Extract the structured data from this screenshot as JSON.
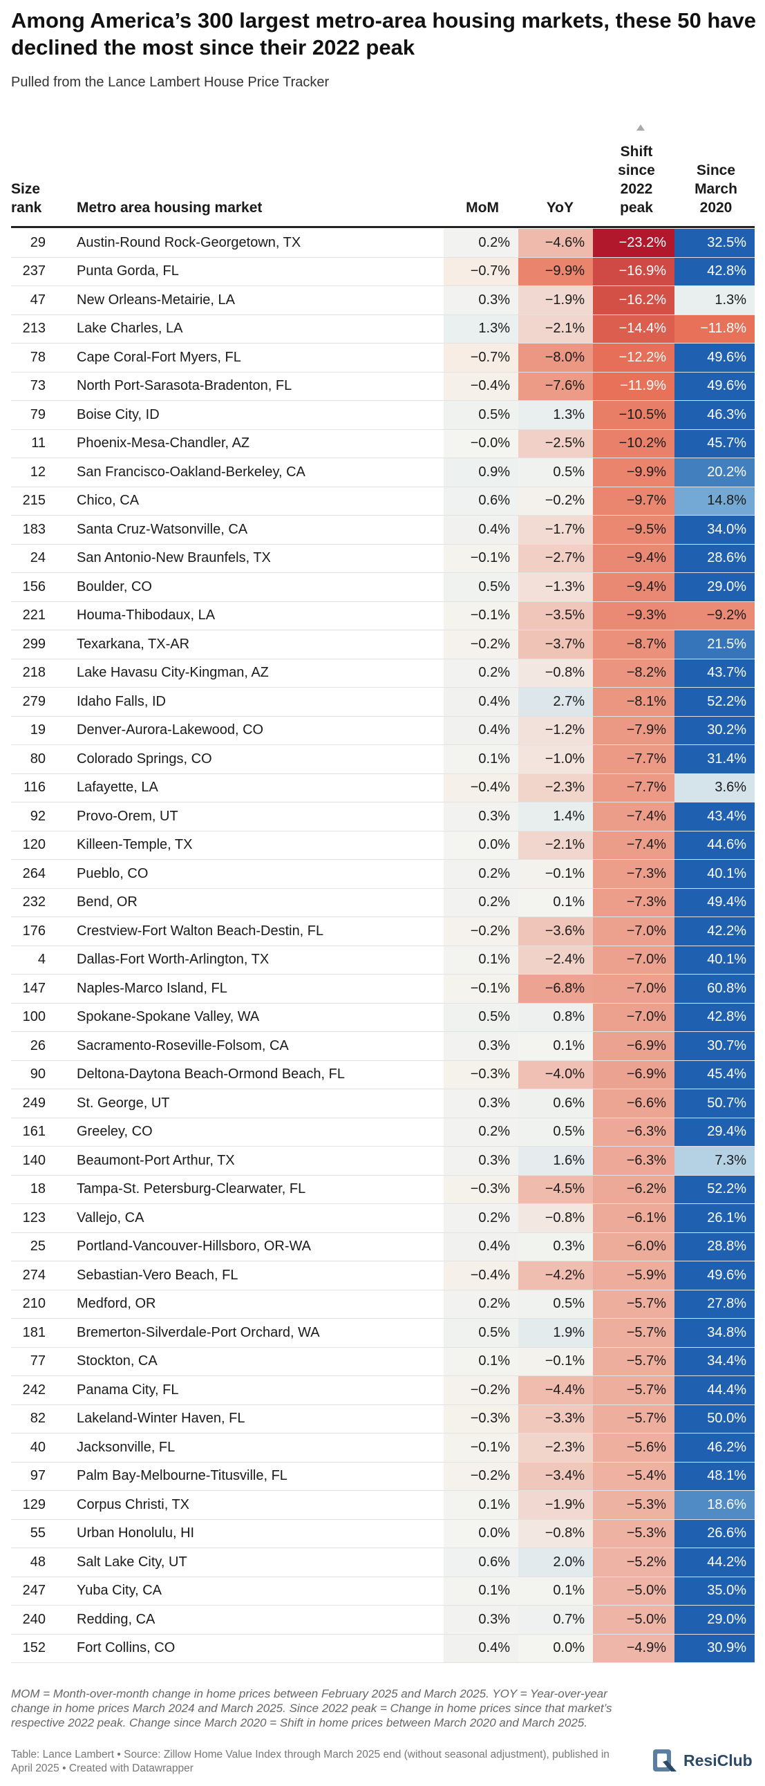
{
  "title": "Among America’s 300 largest metro-area housing markets, these 50 have declined the most since their 2022 peak",
  "subtitle": "Pulled from the Lance Lambert House Price Tracker",
  "chart_data": {
    "type": "table",
    "title": "Among America’s 300 largest metro-area housing markets, these 50 have declined the most since their 2022 peak",
    "sort_column": "peak",
    "columns": {
      "rank": [
        "Size",
        "rank"
      ],
      "metro": [
        "Metro area housing market"
      ],
      "mom": [
        "MoM"
      ],
      "yoy": [
        "YoY"
      ],
      "peak": [
        "Shift",
        "since",
        "2022",
        "peak"
      ],
      "since": [
        "Since",
        "March",
        "2020"
      ]
    },
    "rows": [
      {
        "rank": 29,
        "metro": "Austin-Round Rock-Georgetown, TX",
        "mom": 0.2,
        "yoy": -4.6,
        "peak": -23.2,
        "since": 32.5
      },
      {
        "rank": 237,
        "metro": "Punta Gorda, FL",
        "mom": -0.7,
        "yoy": -9.9,
        "peak": -16.9,
        "since": 42.8
      },
      {
        "rank": 47,
        "metro": "New Orleans-Metairie, LA",
        "mom": 0.3,
        "yoy": -1.9,
        "peak": -16.2,
        "since": 1.3
      },
      {
        "rank": 213,
        "metro": "Lake Charles, LA",
        "mom": 1.3,
        "yoy": -2.1,
        "peak": -14.4,
        "since": -11.8
      },
      {
        "rank": 78,
        "metro": "Cape Coral-Fort Myers, FL",
        "mom": -0.7,
        "yoy": -8.0,
        "peak": -12.2,
        "since": 49.6
      },
      {
        "rank": 73,
        "metro": "North Port-Sarasota-Bradenton, FL",
        "mom": -0.4,
        "yoy": -7.6,
        "peak": -11.9,
        "since": 49.6
      },
      {
        "rank": 79,
        "metro": "Boise City, ID",
        "mom": 0.5,
        "yoy": 1.3,
        "peak": -10.5,
        "since": 46.3
      },
      {
        "rank": 11,
        "metro": "Phoenix-Mesa-Chandler, AZ",
        "mom": -0.0,
        "yoy": -2.5,
        "peak": -10.2,
        "since": 45.7,
        "mom_text": "−0.0%"
      },
      {
        "rank": 12,
        "metro": "San Francisco-Oakland-Berkeley, CA",
        "mom": 0.9,
        "yoy": 0.5,
        "peak": -9.9,
        "since": 20.2
      },
      {
        "rank": 215,
        "metro": "Chico, CA",
        "mom": 0.6,
        "yoy": -0.2,
        "peak": -9.7,
        "since": 14.8
      },
      {
        "rank": 183,
        "metro": "Santa Cruz-Watsonville, CA",
        "mom": 0.4,
        "yoy": -1.7,
        "peak": -9.5,
        "since": 34.0
      },
      {
        "rank": 24,
        "metro": "San Antonio-New Braunfels, TX",
        "mom": -0.1,
        "yoy": -2.7,
        "peak": -9.4,
        "since": 28.6
      },
      {
        "rank": 156,
        "metro": "Boulder, CO",
        "mom": 0.5,
        "yoy": -1.3,
        "peak": -9.4,
        "since": 29.0
      },
      {
        "rank": 221,
        "metro": "Houma-Thibodaux, LA",
        "mom": -0.1,
        "yoy": -3.5,
        "peak": -9.3,
        "since": -9.2
      },
      {
        "rank": 299,
        "metro": "Texarkana, TX-AR",
        "mom": -0.2,
        "yoy": -3.7,
        "peak": -8.7,
        "since": 21.5
      },
      {
        "rank": 218,
        "metro": "Lake Havasu City-Kingman, AZ",
        "mom": 0.2,
        "yoy": -0.8,
        "peak": -8.2,
        "since": 43.7
      },
      {
        "rank": 279,
        "metro": "Idaho Falls, ID",
        "mom": 0.4,
        "yoy": 2.7,
        "peak": -8.1,
        "since": 52.2
      },
      {
        "rank": 19,
        "metro": "Denver-Aurora-Lakewood, CO",
        "mom": 0.4,
        "yoy": -1.2,
        "peak": -7.9,
        "since": 30.2
      },
      {
        "rank": 80,
        "metro": "Colorado Springs, CO",
        "mom": 0.1,
        "yoy": -1.0,
        "peak": -7.7,
        "since": 31.4
      },
      {
        "rank": 116,
        "metro": "Lafayette, LA",
        "mom": -0.4,
        "yoy": -2.3,
        "peak": -7.7,
        "since": 3.6
      },
      {
        "rank": 92,
        "metro": "Provo-Orem, UT",
        "mom": 0.3,
        "yoy": 1.4,
        "peak": -7.4,
        "since": 43.4
      },
      {
        "rank": 120,
        "metro": "Killeen-Temple, TX",
        "mom": 0.0,
        "yoy": -2.1,
        "peak": -7.4,
        "since": 44.6
      },
      {
        "rank": 264,
        "metro": "Pueblo, CO",
        "mom": 0.2,
        "yoy": -0.1,
        "peak": -7.3,
        "since": 40.1
      },
      {
        "rank": 232,
        "metro": "Bend, OR",
        "mom": 0.2,
        "yoy": 0.1,
        "peak": -7.3,
        "since": 49.4
      },
      {
        "rank": 176,
        "metro": "Crestview-Fort Walton Beach-Destin, FL",
        "mom": -0.2,
        "yoy": -3.6,
        "peak": -7.0,
        "since": 42.2
      },
      {
        "rank": 4,
        "metro": "Dallas-Fort Worth-Arlington, TX",
        "mom": 0.1,
        "yoy": -2.4,
        "peak": -7.0,
        "since": 40.1
      },
      {
        "rank": 147,
        "metro": "Naples-Marco Island, FL",
        "mom": -0.1,
        "yoy": -6.8,
        "peak": -7.0,
        "since": 60.8
      },
      {
        "rank": 100,
        "metro": "Spokane-Spokane Valley, WA",
        "mom": 0.5,
        "yoy": 0.8,
        "peak": -7.0,
        "since": 42.8
      },
      {
        "rank": 26,
        "metro": "Sacramento-Roseville-Folsom, CA",
        "mom": 0.3,
        "yoy": 0.1,
        "peak": -6.9,
        "since": 30.7
      },
      {
        "rank": 90,
        "metro": "Deltona-Daytona Beach-Ormond Beach, FL",
        "mom": -0.3,
        "yoy": -4.0,
        "peak": -6.9,
        "since": 45.4
      },
      {
        "rank": 249,
        "metro": "St. George, UT",
        "mom": 0.3,
        "yoy": 0.6,
        "peak": -6.6,
        "since": 50.7
      },
      {
        "rank": 161,
        "metro": "Greeley, CO",
        "mom": 0.2,
        "yoy": 0.5,
        "peak": -6.3,
        "since": 29.4
      },
      {
        "rank": 140,
        "metro": "Beaumont-Port Arthur, TX",
        "mom": 0.3,
        "yoy": 1.6,
        "peak": -6.3,
        "since": 7.3
      },
      {
        "rank": 18,
        "metro": "Tampa-St. Petersburg-Clearwater, FL",
        "mom": -0.3,
        "yoy": -4.5,
        "peak": -6.2,
        "since": 52.2
      },
      {
        "rank": 123,
        "metro": "Vallejo, CA",
        "mom": 0.2,
        "yoy": -0.8,
        "peak": -6.1,
        "since": 26.1
      },
      {
        "rank": 25,
        "metro": "Portland-Vancouver-Hillsboro, OR-WA",
        "mom": 0.4,
        "yoy": 0.3,
        "peak": -6.0,
        "since": 28.8
      },
      {
        "rank": 274,
        "metro": "Sebastian-Vero Beach, FL",
        "mom": -0.4,
        "yoy": -4.2,
        "peak": -5.9,
        "since": 49.6
      },
      {
        "rank": 210,
        "metro": "Medford, OR",
        "mom": 0.2,
        "yoy": 0.5,
        "peak": -5.7,
        "since": 27.8
      },
      {
        "rank": 181,
        "metro": "Bremerton-Silverdale-Port Orchard, WA",
        "mom": 0.5,
        "yoy": 1.9,
        "peak": -5.7,
        "since": 34.8
      },
      {
        "rank": 77,
        "metro": "Stockton, CA",
        "mom": 0.1,
        "yoy": -0.1,
        "peak": -5.7,
        "since": 34.4
      },
      {
        "rank": 242,
        "metro": "Panama City, FL",
        "mom": -0.2,
        "yoy": -4.4,
        "peak": -5.7,
        "since": 44.4
      },
      {
        "rank": 82,
        "metro": "Lakeland-Winter Haven, FL",
        "mom": -0.3,
        "yoy": -3.3,
        "peak": -5.7,
        "since": 50.0
      },
      {
        "rank": 40,
        "metro": "Jacksonville, FL",
        "mom": -0.1,
        "yoy": -2.3,
        "peak": -5.6,
        "since": 46.2
      },
      {
        "rank": 97,
        "metro": "Palm Bay-Melbourne-Titusville, FL",
        "mom": -0.2,
        "yoy": -3.4,
        "peak": -5.4,
        "since": 48.1
      },
      {
        "rank": 129,
        "metro": "Corpus Christi, TX",
        "mom": 0.1,
        "yoy": -1.9,
        "peak": -5.3,
        "since": 18.6
      },
      {
        "rank": 55,
        "metro": "Urban Honolulu, HI",
        "mom": 0.0,
        "yoy": -0.8,
        "peak": -5.3,
        "since": 26.6
      },
      {
        "rank": 48,
        "metro": "Salt Lake City, UT",
        "mom": 0.6,
        "yoy": 2.0,
        "peak": -5.2,
        "since": 44.2
      },
      {
        "rank": 247,
        "metro": "Yuba City, CA",
        "mom": 0.1,
        "yoy": 0.1,
        "peak": -5.0,
        "since": 35.0
      },
      {
        "rank": 240,
        "metro": "Redding, CA",
        "mom": 0.3,
        "yoy": 0.7,
        "peak": -5.0,
        "since": 29.0
      },
      {
        "rank": 152,
        "metro": "Fort Collins, CO",
        "mom": 0.4,
        "yoy": 0.0,
        "peak": -4.9,
        "since": 30.9
      }
    ]
  },
  "notes": "MOM = Month-over-month change in home prices between February 2025 and March 2025. YOY = Year-over-year change in home prices March 2024 and March 2025. Since 2022 peak = Change in home prices since that market’s respective 2022 peak. Change since March 2020 = Shift in home prices between March 2020 and March 2025.",
  "source": "Table: Lance Lambert • Source: Zillow Home Value Index through March 2025 end (without seasonal adjustment), published in April 2025 • Created with Datawrapper",
  "logo": {
    "text": "ResiClub",
    "icon": "resiclub-logo-icon"
  },
  "colors": {
    "neg_strong": "#b2182b",
    "neg_mid": "#e8745a",
    "neg_light": "#fbe2d5",
    "neutral": "#f4f4f0",
    "pos_light": "#d6e6f0",
    "pos_mid": "#7fb3d9",
    "pos_strong": "#1f61b0",
    "text_dark": "#1a1a1a",
    "text_light": "#ffffff"
  }
}
